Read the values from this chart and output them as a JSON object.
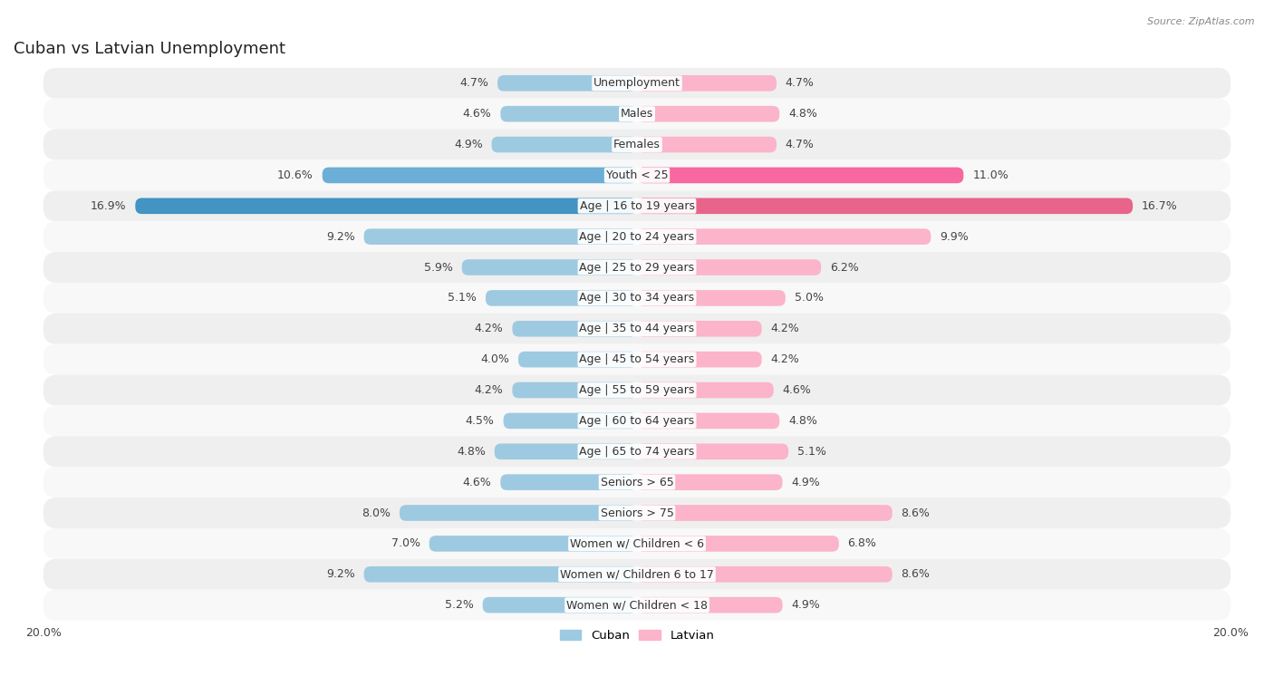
{
  "title": "Cuban vs Latvian Unemployment",
  "source": "Source: ZipAtlas.com",
  "categories": [
    "Unemployment",
    "Males",
    "Females",
    "Youth < 25",
    "Age | 16 to 19 years",
    "Age | 20 to 24 years",
    "Age | 25 to 29 years",
    "Age | 30 to 34 years",
    "Age | 35 to 44 years",
    "Age | 45 to 54 years",
    "Age | 55 to 59 years",
    "Age | 60 to 64 years",
    "Age | 65 to 74 years",
    "Seniors > 65",
    "Seniors > 75",
    "Women w/ Children < 6",
    "Women w/ Children 6 to 17",
    "Women w/ Children < 18"
  ],
  "cuban": [
    4.7,
    4.6,
    4.9,
    10.6,
    16.9,
    9.2,
    5.9,
    5.1,
    4.2,
    4.0,
    4.2,
    4.5,
    4.8,
    4.6,
    8.0,
    7.0,
    9.2,
    5.2
  ],
  "latvian": [
    4.7,
    4.8,
    4.7,
    11.0,
    16.7,
    9.9,
    6.2,
    5.0,
    4.2,
    4.2,
    4.6,
    4.8,
    5.1,
    4.9,
    8.6,
    6.8,
    8.6,
    4.9
  ],
  "cuban_color_normal": "#9ecae1",
  "cuban_color_high": "#6baed6",
  "cuban_color_highest": "#4393c3",
  "latvian_color_normal": "#fbb4c9",
  "latvian_color_high": "#f768a1",
  "latvian_color_highest": "#e8648a",
  "max_val": 20.0,
  "bg_color": "#ffffff",
  "row_even_color": "#efefef",
  "row_odd_color": "#f8f8f8",
  "label_fontsize": 9,
  "title_fontsize": 13,
  "source_fontsize": 8
}
